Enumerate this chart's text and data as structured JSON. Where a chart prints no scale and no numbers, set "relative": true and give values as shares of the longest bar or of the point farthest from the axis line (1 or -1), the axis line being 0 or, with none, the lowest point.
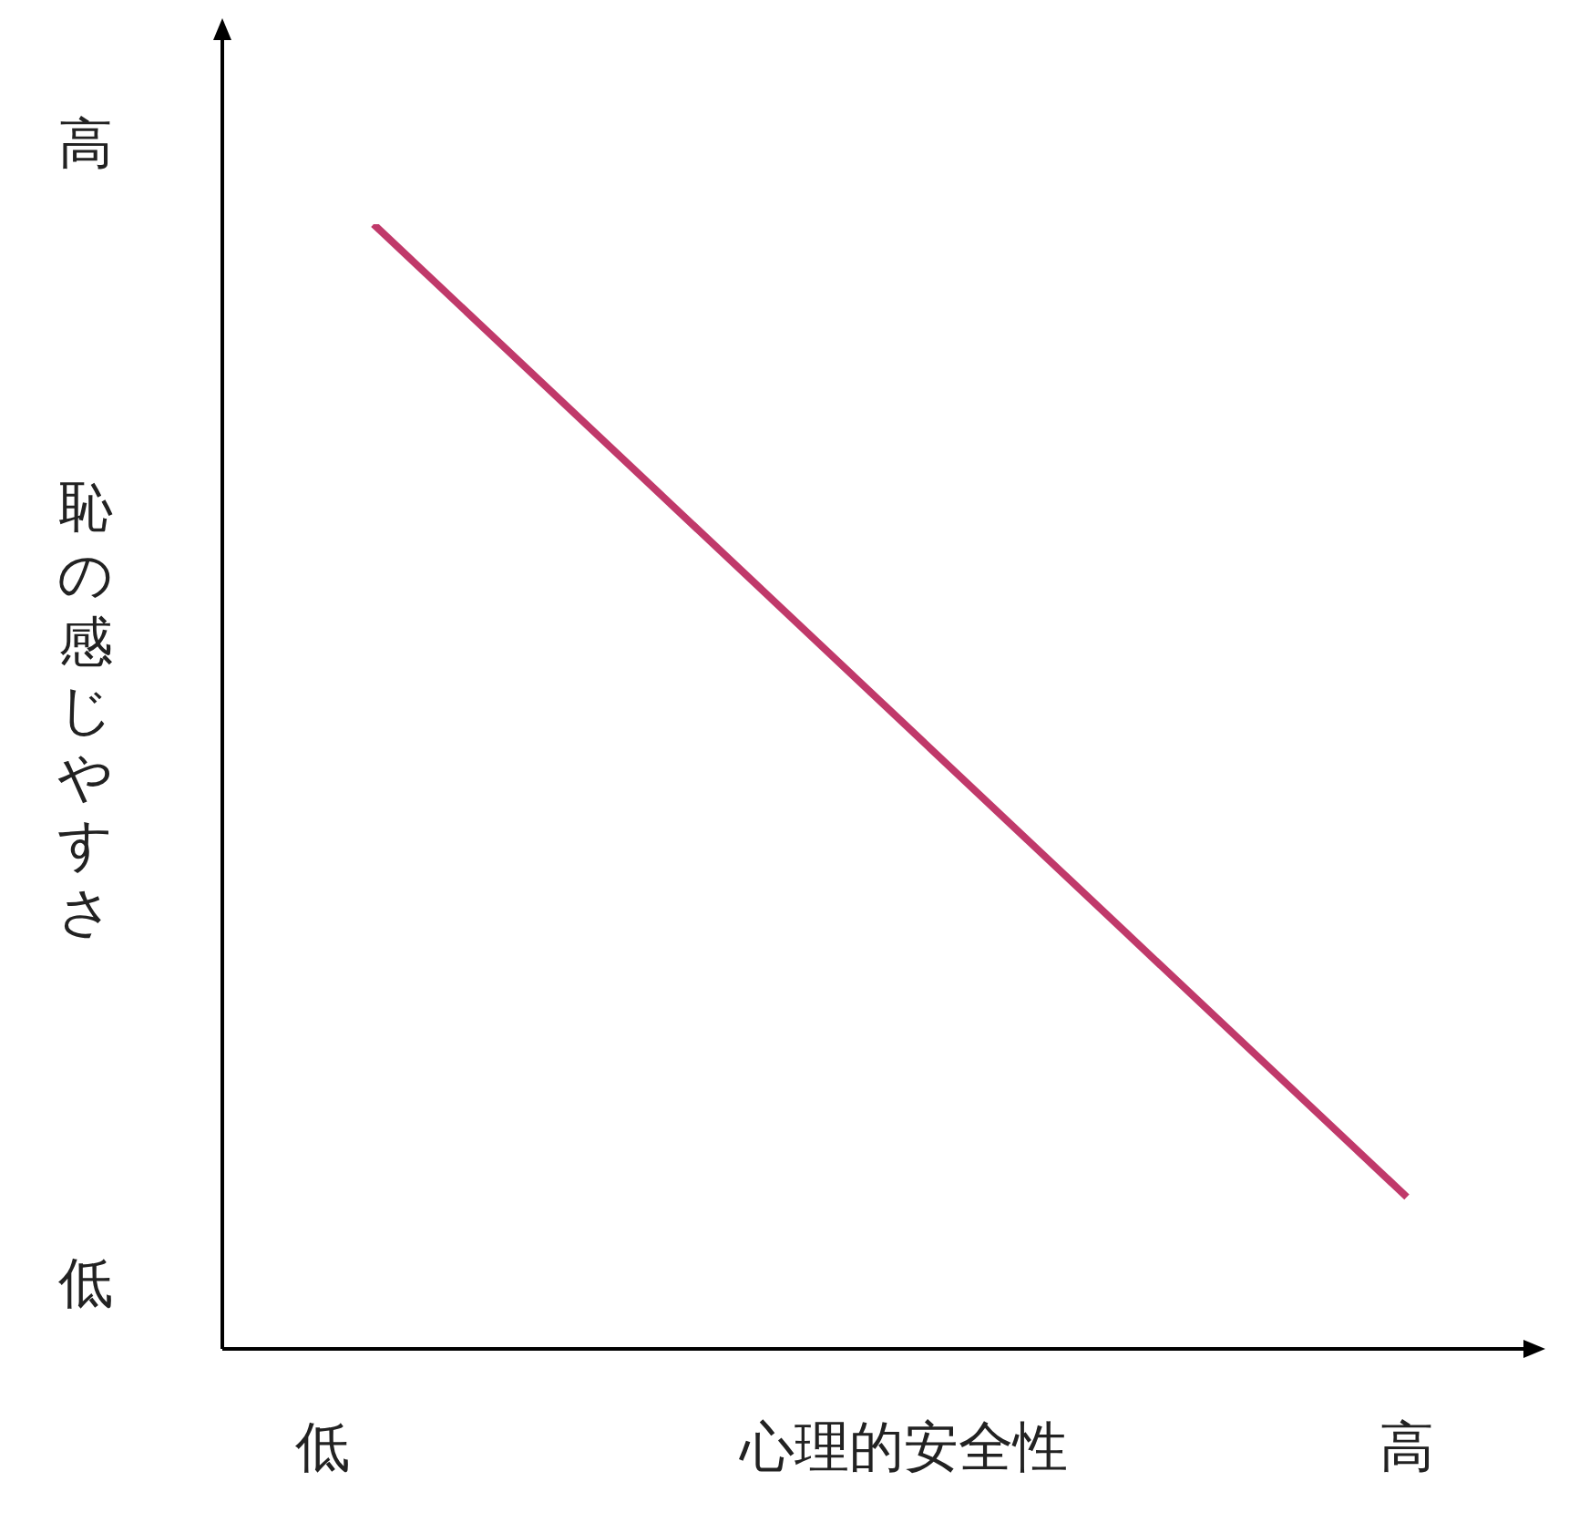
{
  "chart_data": {
    "type": "line",
    "relative": true,
    "xlabel": "心理的安全性",
    "ylabel": "恥の感じやすさ",
    "annotations": [
      "高",
      "低",
      "低",
      "高"
    ],
    "categories": [
      null,
      null
    ],
    "series": [
      {
        "color": "#c0396a",
        "values": [
          1,
          0.135
        ]
      }
    ],
    "legend": false
  }
}
